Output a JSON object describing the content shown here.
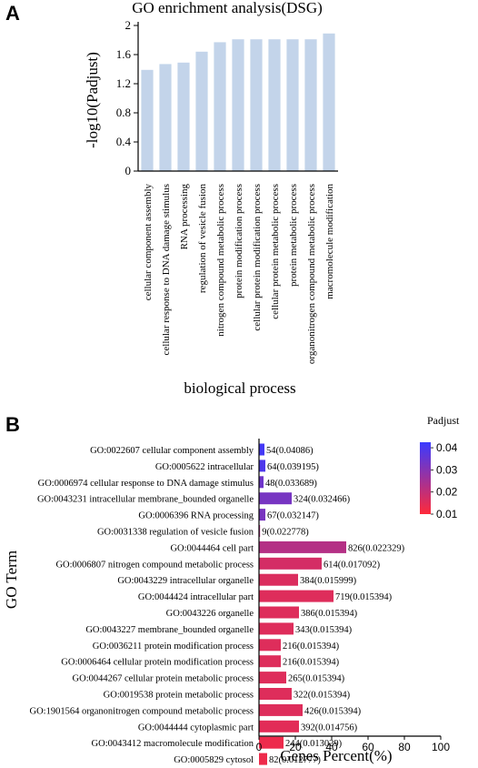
{
  "panel_a": {
    "letter": "A"
  },
  "panel_b": {
    "letter": "B"
  },
  "chart_data": [
    {
      "type": "bar",
      "title": "GO enrichment analysis(DSG)",
      "ylabel": "-log10(Padjust)",
      "xlabel": "biological process",
      "ylim": [
        0,
        2
      ],
      "yticks": [
        "0",
        "0.4",
        "0.8",
        "1.2",
        "1.6",
        "2"
      ],
      "bar_color": "#c3d4ea",
      "categories": [
        "cellular component assembly",
        "cellular response to DNA damage stimulus",
        "RNA processing",
        "regulation of vesicle fusion",
        "nitrogen compound metabolic process",
        "protein modification process",
        "cellular protein modification process",
        "cellular protein metabolic process",
        "protein metabolic process",
        "organonitrogen compound metabolic process",
        "macromolecule modification"
      ],
      "values": [
        1.39,
        1.47,
        1.49,
        1.64,
        1.77,
        1.81,
        1.81,
        1.81,
        1.81,
        1.81,
        1.89
      ]
    },
    {
      "type": "bar",
      "orientation": "horizontal",
      "ylabel": "GO Term",
      "xlabel": "Genes Percent(%)",
      "xlim": [
        0,
        100
      ],
      "xticks": [
        "0",
        "20",
        "40",
        "60",
        "80",
        "100"
      ],
      "legend": {
        "title": "Padjust",
        "ticks": [
          "0.04",
          "0.03",
          "0.02",
          "0.01"
        ],
        "color_low": "#ff2a3a",
        "color_high": "#3a3aff"
      },
      "categories": [
        "GO:0022607 cellular component assembly",
        "GO:0005622 intracellular",
        "GO:0006974 cellular response to DNA damage stimulus",
        "GO:0043231 intracellular membrane_bounded organelle",
        "GO:0006396 RNA processing",
        "GO:0031338 regulation of vesicle fusion",
        "GO:0044464 cell part",
        "GO:0006807 nitrogen compound metabolic process",
        "GO:0043229 intracellular organelle",
        "GO:0044424 intracellular part",
        "GO:0043226 organelle",
        "GO:0043227 membrane_bounded organelle",
        "GO:0036211 protein modification process",
        "GO:0006464 cellular protein modification process",
        "GO:0044267 cellular protein metabolic process",
        "GO:0019538 protein metabolic process",
        "GO:1901564 organonitrogen compound metabolic process",
        "GO:0044444 cytoplasmic part",
        "GO:0043412 macromolecule modification",
        "GO:0005829 cytosol"
      ],
      "values": [
        3,
        3.5,
        2.5,
        18,
        3.5,
        0.5,
        48,
        34.5,
        21.5,
        41,
        22,
        19,
        12,
        12,
        15,
        18,
        24,
        22,
        13.5,
        4.5
      ],
      "labels": [
        "54(0.04086)",
        "64(0.039195)",
        "48(0.033689)",
        "324(0.032466)",
        "67(0.032147)",
        "9(0.022778)",
        "826(0.022329)",
        "614(0.017092)",
        "384(0.015999)",
        "719(0.015394)",
        "386(0.015394)",
        "343(0.015394)",
        "216(0.015394)",
        "216(0.015394)",
        "265(0.015394)",
        "322(0.015394)",
        "426(0.015394)",
        "392(0.014756)",
        "244(0.013029)",
        "82(0.012777)"
      ],
      "padjust": [
        0.04086,
        0.039195,
        0.033689,
        0.032466,
        0.032147,
        0.022778,
        0.022329,
        0.017092,
        0.015999,
        0.015394,
        0.015394,
        0.015394,
        0.015394,
        0.015394,
        0.015394,
        0.015394,
        0.015394,
        0.014756,
        0.013029,
        0.012777
      ]
    }
  ]
}
